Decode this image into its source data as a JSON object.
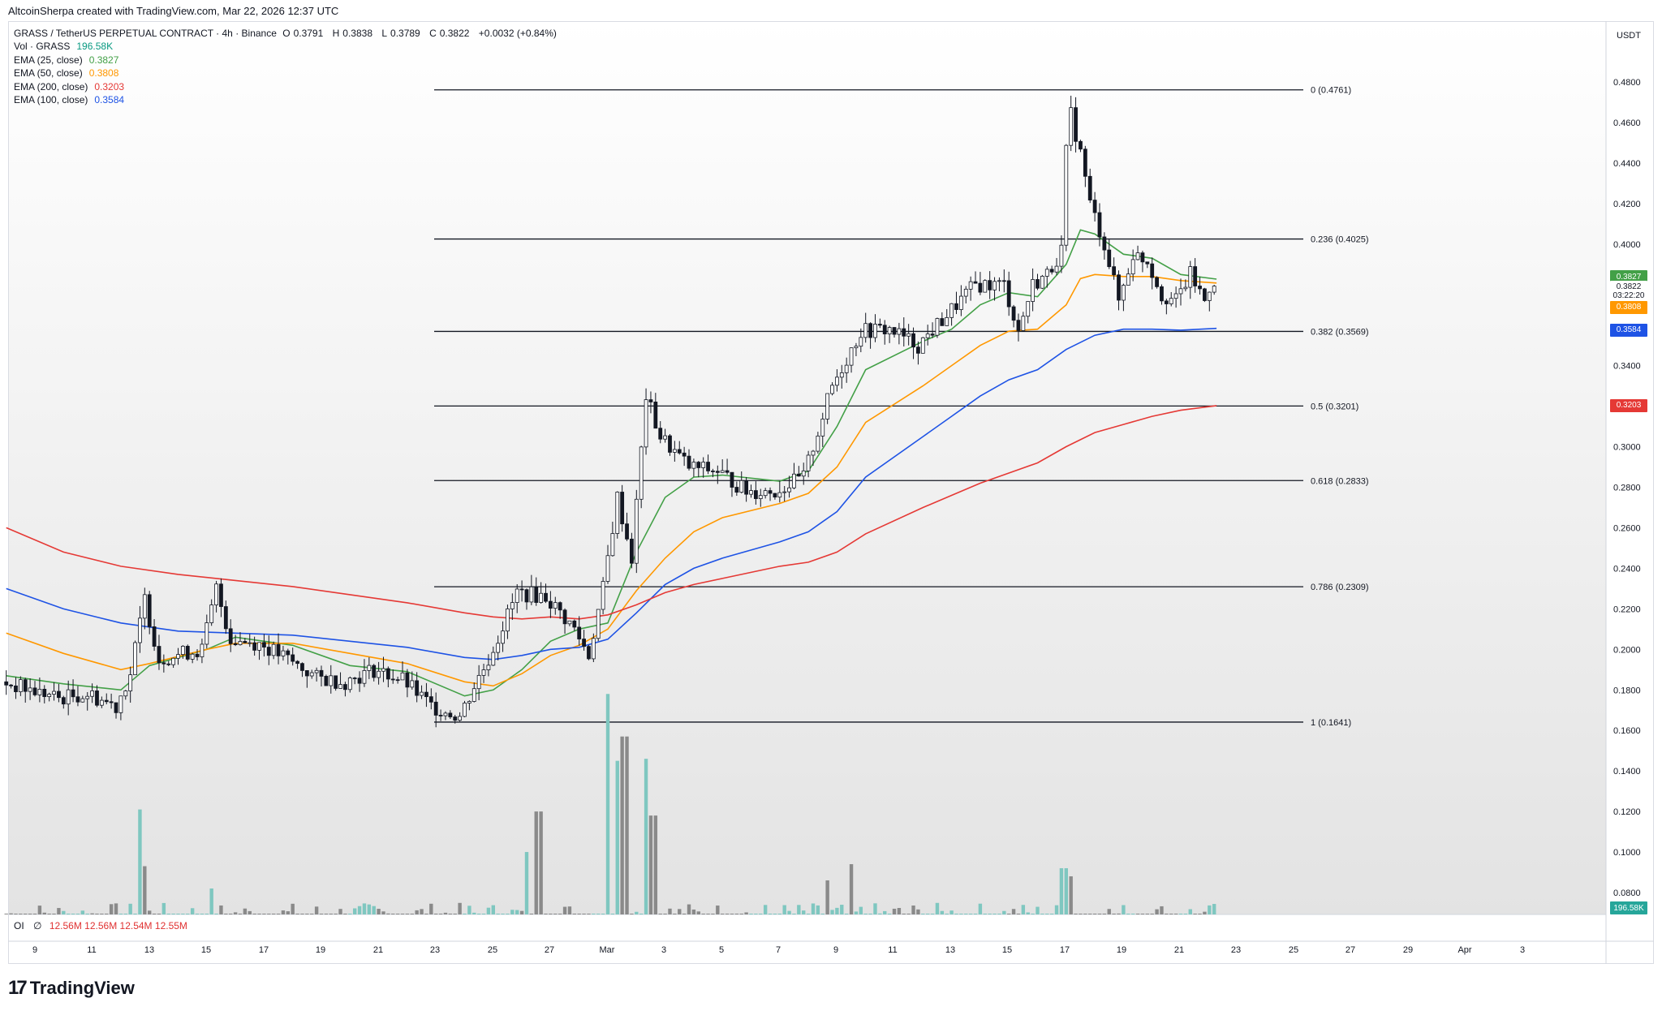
{
  "header": {
    "created_note": "AltcoinSherpa created with TradingView.com, Mar 22, 2026 12:37 UTC",
    "symbol_line": {
      "symbol": "GRASS / TetherUS PERPETUAL CONTRACT · 4h · Binance",
      "o_label": "O",
      "o": "0.3791",
      "h_label": "H",
      "h": "0.3838",
      "l_label": "L",
      "l": "0.3789",
      "c_label": "C",
      "c": "0.3822",
      "change": "+0.0032 (+0.84%)"
    },
    "indicators": [
      {
        "label": "Vol · GRASS",
        "value": "196.58K",
        "color": "#089981"
      },
      {
        "label": "EMA (25, close)",
        "value": "0.3827",
        "color": "#43a047"
      },
      {
        "label": "EMA (50, close)",
        "value": "0.3808",
        "color": "#ff9800"
      },
      {
        "label": "EMA (200, close)",
        "value": "0.3203",
        "color": "#e53935"
      },
      {
        "label": "EMA (100, close)",
        "value": "0.3584",
        "color": "#1e53e5"
      }
    ]
  },
  "price_axis": {
    "unit_button": "USDT",
    "ticks": [
      "0.4800",
      "0.4600",
      "0.4400",
      "0.4200",
      "0.4000",
      "0.3400",
      "0.3200",
      "0.3000",
      "0.2800",
      "0.2600",
      "0.2400",
      "0.2200",
      "0.2000",
      "0.1800",
      "0.1600",
      "0.1400",
      "0.1200",
      "0.1000",
      "0.0800"
    ],
    "tags": [
      {
        "name": "ema25-tag",
        "text": "0.3827",
        "color": "#43a047"
      },
      {
        "name": "last-price-tag",
        "text": "0.3822",
        "sub": "03:22:20",
        "color": "#ffffff",
        "text_color": "#131722"
      },
      {
        "name": "ema50-tag",
        "text": "0.3808",
        "color": "#ff9800"
      },
      {
        "name": "ema100-tag",
        "text": "0.3584",
        "color": "#1e53e5"
      },
      {
        "name": "ema200-tag",
        "text": "0.3203",
        "color": "#e53935"
      },
      {
        "name": "volume-tag",
        "text": "196.58K",
        "color": "#26a69a"
      }
    ]
  },
  "time_axis": {
    "ticks": [
      "9",
      "11",
      "13",
      "15",
      "17",
      "19",
      "21",
      "23",
      "25",
      "27",
      "Mar",
      "3",
      "5",
      "7",
      "9",
      "11",
      "13",
      "15",
      "17",
      "19",
      "21",
      "23",
      "25",
      "27",
      "29",
      "Apr",
      "3"
    ]
  },
  "oi_row": {
    "label": "OI",
    "symbol": "∅",
    "values": "12.56M  12.56M  12.54M  12.55M"
  },
  "brand": {
    "name": "TradingView"
  },
  "chart_data": {
    "type": "candlestick",
    "price_range": [
      0.06,
      0.49
    ],
    "fib_levels": [
      {
        "ratio": "0",
        "price": 0.4761,
        "label": "0 (0.4761)"
      },
      {
        "ratio": "0.236",
        "price": 0.4025,
        "label": "0.236 (0.4025)"
      },
      {
        "ratio": "0.382",
        "price": 0.3569,
        "label": "0.382 (0.3569)"
      },
      {
        "ratio": "0.5",
        "price": 0.3201,
        "label": "0.5 (0.3201)"
      },
      {
        "ratio": "0.618",
        "price": 0.2833,
        "label": "0.618 (0.2833)"
      },
      {
        "ratio": "0.786",
        "price": 0.2309,
        "label": "0.786 (0.2309)"
      },
      {
        "ratio": "1",
        "price": 0.1641,
        "label": "1 (0.1641)"
      }
    ],
    "price_path": [
      [
        "Feb 8",
        0.184
      ],
      [
        "Feb 9",
        0.18
      ],
      [
        "Feb 10",
        0.176
      ],
      [
        "Feb 11",
        0.178
      ],
      [
        "Feb 12",
        0.172
      ],
      [
        "Feb 12.5",
        0.188
      ],
      [
        "Feb 13",
        0.225
      ],
      [
        "Feb 13.5",
        0.195
      ],
      [
        "Feb 14",
        0.197
      ],
      [
        "Feb 15",
        0.2
      ],
      [
        "Feb 15.5",
        0.23
      ],
      [
        "Feb 16",
        0.205
      ],
      [
        "Feb 17",
        0.203
      ],
      [
        "Feb 18",
        0.195
      ],
      [
        "Feb 19",
        0.186
      ],
      [
        "Feb 20",
        0.184
      ],
      [
        "Feb 21",
        0.19
      ],
      [
        "Feb 22",
        0.185
      ],
      [
        "Feb 23",
        0.172
      ],
      [
        "Feb 24",
        0.167
      ],
      [
        "Feb 24.5",
        0.182
      ],
      [
        "Feb 25",
        0.195
      ],
      [
        "Feb 26",
        0.228
      ],
      [
        "Feb 27",
        0.226
      ],
      [
        "Feb 28",
        0.21
      ],
      [
        "Feb 28.5",
        0.197
      ],
      [
        "Mar 1",
        0.23
      ],
      [
        "Mar 1.5",
        0.275
      ],
      [
        "Mar 2",
        0.245
      ],
      [
        "Mar 2.5",
        0.325
      ],
      [
        "Mar 3",
        0.305
      ],
      [
        "Mar 4",
        0.29
      ],
      [
        "Mar 5",
        0.288
      ],
      [
        "Mar 6",
        0.278
      ],
      [
        "Mar 7",
        0.278
      ],
      [
        "Mar 8",
        0.285
      ],
      [
        "Mar 9",
        0.33
      ],
      [
        "Mar 10",
        0.357
      ],
      [
        "Mar 11",
        0.358
      ],
      [
        "Mar 12",
        0.35
      ],
      [
        "Mar 13",
        0.365
      ],
      [
        "Mar 14",
        0.38
      ],
      [
        "Mar 15",
        0.38
      ],
      [
        "Mar 15.5",
        0.357
      ],
      [
        "Mar 16",
        0.38
      ],
      [
        "Mar 16.5",
        0.385
      ],
      [
        "Mar 17",
        0.397
      ],
      [
        "Mar 17.25",
        0.469
      ],
      [
        "Mar 17.75",
        0.44
      ],
      [
        "Mar 18",
        0.42
      ],
      [
        "Mar 18.5",
        0.4
      ],
      [
        "Mar 19",
        0.372
      ],
      [
        "Mar 19.5",
        0.395
      ],
      [
        "Mar 20",
        0.392
      ],
      [
        "Mar 20.5",
        0.375
      ],
      [
        "Mar 21",
        0.372
      ],
      [
        "Mar 21.5",
        0.385
      ],
      [
        "Mar 22",
        0.372
      ],
      [
        "Mar 22.25",
        0.3822
      ]
    ],
    "ema_lines": [
      {
        "name": "EMA 25",
        "color": "#43a047",
        "points": [
          [
            "Feb 8",
            0.187
          ],
          [
            "Feb 10",
            0.183
          ],
          [
            "Feb 12",
            0.18
          ],
          [
            "Feb 13",
            0.192
          ],
          [
            "Feb 15",
            0.2
          ],
          [
            "Feb 16",
            0.206
          ],
          [
            "Feb 18",
            0.202
          ],
          [
            "Feb 20",
            0.192
          ],
          [
            "Feb 22",
            0.189
          ],
          [
            "Feb 24",
            0.177
          ],
          [
            "Feb 25",
            0.18
          ],
          [
            "Feb 26",
            0.19
          ],
          [
            "Feb 27",
            0.204
          ],
          [
            "Feb 28",
            0.21
          ],
          [
            "Mar 1",
            0.213
          ],
          [
            "Mar 2",
            0.248
          ],
          [
            "Mar 3",
            0.275
          ],
          [
            "Mar 4",
            0.285
          ],
          [
            "Mar 5",
            0.286
          ],
          [
            "Mar 7",
            0.283
          ],
          [
            "Mar 8",
            0.288
          ],
          [
            "Mar 9",
            0.31
          ],
          [
            "Mar 10",
            0.338
          ],
          [
            "Mar 12",
            0.352
          ],
          [
            "Mar 13",
            0.358
          ],
          [
            "Mar 14",
            0.37
          ],
          [
            "Mar 15",
            0.376
          ],
          [
            "Mar 16",
            0.374
          ],
          [
            "Mar 17",
            0.39
          ],
          [
            "Mar 17.5",
            0.407
          ],
          [
            "Mar 18",
            0.405
          ],
          [
            "Mar 19",
            0.395
          ],
          [
            "Mar 20",
            0.393
          ],
          [
            "Mar 21",
            0.385
          ],
          [
            "Mar 22.25",
            0.3827
          ]
        ]
      },
      {
        "name": "EMA 50",
        "color": "#ff9800",
        "points": [
          [
            "Feb 8",
            0.208
          ],
          [
            "Feb 10",
            0.198
          ],
          [
            "Feb 12",
            0.19
          ],
          [
            "Feb 13",
            0.193
          ],
          [
            "Feb 15",
            0.2
          ],
          [
            "Feb 16",
            0.203
          ],
          [
            "Feb 18",
            0.203
          ],
          [
            "Feb 20",
            0.198
          ],
          [
            "Feb 22",
            0.193
          ],
          [
            "Feb 24",
            0.184
          ],
          [
            "Feb 25",
            0.182
          ],
          [
            "Feb 26",
            0.188
          ],
          [
            "Feb 27",
            0.197
          ],
          [
            "Feb 28",
            0.202
          ],
          [
            "Mar 1",
            0.21
          ],
          [
            "Mar 2",
            0.229
          ],
          [
            "Mar 3",
            0.245
          ],
          [
            "Mar 4",
            0.258
          ],
          [
            "Mar 5",
            0.265
          ],
          [
            "Mar 7",
            0.272
          ],
          [
            "Mar 8",
            0.277
          ],
          [
            "Mar 9",
            0.29
          ],
          [
            "Mar 10",
            0.312
          ],
          [
            "Mar 12",
            0.33
          ],
          [
            "Mar 13",
            0.34
          ],
          [
            "Mar 14",
            0.35
          ],
          [
            "Mar 15",
            0.357
          ],
          [
            "Mar 16",
            0.358
          ],
          [
            "Mar 17",
            0.37
          ],
          [
            "Mar 17.5",
            0.383
          ],
          [
            "Mar 18",
            0.385
          ],
          [
            "Mar 19",
            0.384
          ],
          [
            "Mar 20",
            0.384
          ],
          [
            "Mar 21",
            0.382
          ],
          [
            "Mar 22.25",
            0.3808
          ]
        ]
      },
      {
        "name": "EMA 100",
        "color": "#1e53e5",
        "points": [
          [
            "Feb 8",
            0.23
          ],
          [
            "Feb 10",
            0.22
          ],
          [
            "Feb 12",
            0.213
          ],
          [
            "Feb 14",
            0.209
          ],
          [
            "Feb 16",
            0.208
          ],
          [
            "Feb 18",
            0.207
          ],
          [
            "Feb 20",
            0.204
          ],
          [
            "Feb 22",
            0.201
          ],
          [
            "Feb 24",
            0.196
          ],
          [
            "Feb 25",
            0.195
          ],
          [
            "Feb 26",
            0.197
          ],
          [
            "Feb 27",
            0.2
          ],
          [
            "Feb 28",
            0.201
          ],
          [
            "Mar 1",
            0.205
          ],
          [
            "Mar 2",
            0.218
          ],
          [
            "Mar 3",
            0.232
          ],
          [
            "Mar 4",
            0.24
          ],
          [
            "Mar 5",
            0.245
          ],
          [
            "Mar 6",
            0.249
          ],
          [
            "Mar 7",
            0.253
          ],
          [
            "Mar 8",
            0.258
          ],
          [
            "Mar 9",
            0.268
          ],
          [
            "Mar 10",
            0.285
          ],
          [
            "Mar 12",
            0.305
          ],
          [
            "Mar 13",
            0.315
          ],
          [
            "Mar 14",
            0.325
          ],
          [
            "Mar 15",
            0.333
          ],
          [
            "Mar 16",
            0.338
          ],
          [
            "Mar 17",
            0.348
          ],
          [
            "Mar 18",
            0.355
          ],
          [
            "Mar 19",
            0.358
          ],
          [
            "Mar 20",
            0.358
          ],
          [
            "Mar 21",
            0.3575
          ],
          [
            "Mar 22.25",
            0.3584
          ]
        ]
      },
      {
        "name": "EMA 200",
        "color": "#e53935",
        "points": [
          [
            "Feb 8",
            0.26
          ],
          [
            "Feb 10",
            0.248
          ],
          [
            "Feb 12",
            0.241
          ],
          [
            "Feb 14",
            0.237
          ],
          [
            "Feb 16",
            0.234
          ],
          [
            "Feb 18",
            0.231
          ],
          [
            "Feb 20",
            0.227
          ],
          [
            "Feb 22",
            0.223
          ],
          [
            "Feb 24",
            0.218
          ],
          [
            "Feb 25",
            0.216
          ],
          [
            "Feb 26",
            0.215
          ],
          [
            "Feb 27",
            0.216
          ],
          [
            "Feb 28",
            0.215
          ],
          [
            "Mar 1",
            0.217
          ],
          [
            "Mar 2",
            0.222
          ],
          [
            "Mar 3",
            0.228
          ],
          [
            "Mar 4",
            0.232
          ],
          [
            "Mar 5",
            0.235
          ],
          [
            "Mar 6",
            0.238
          ],
          [
            "Mar 7",
            0.241
          ],
          [
            "Mar 8",
            0.243
          ],
          [
            "Mar 9",
            0.248
          ],
          [
            "Mar 10",
            0.257
          ],
          [
            "Mar 12",
            0.27
          ],
          [
            "Mar 13",
            0.276
          ],
          [
            "Mar 14",
            0.282
          ],
          [
            "Mar 15",
            0.287
          ],
          [
            "Mar 16",
            0.292
          ],
          [
            "Mar 17",
            0.3
          ],
          [
            "Mar 18",
            0.307
          ],
          [
            "Mar 19",
            0.311
          ],
          [
            "Mar 20",
            0.315
          ],
          [
            "Mar 21",
            0.318
          ],
          [
            "Mar 22.25",
            0.3203
          ]
        ]
      }
    ],
    "volume_spikes": [
      {
        "x": "Feb 12.6",
        "height": 0.121,
        "up": true
      },
      {
        "x": "Feb 12.8",
        "height": 0.093,
        "up": false
      },
      {
        "x": "Feb 15.2",
        "height": 0.082,
        "up": true
      },
      {
        "x": "Feb 26.2",
        "height": 0.1,
        "up": true
      },
      {
        "x": "Feb 26.6",
        "height": 0.12,
        "up": false
      },
      {
        "x": "Mar 1.0",
        "height": 0.178,
        "up": true
      },
      {
        "x": "Mar 1.3",
        "height": 0.145,
        "up": true
      },
      {
        "x": "Mar 1.6",
        "height": 0.157,
        "up": false
      },
      {
        "x": "Mar 2.3",
        "height": 0.146,
        "up": true
      },
      {
        "x": "Mar 2.6",
        "height": 0.118,
        "up": false
      },
      {
        "x": "Mar 8.7",
        "height": 0.086,
        "up": false
      },
      {
        "x": "Mar 9.5",
        "height": 0.094,
        "up": false
      },
      {
        "x": "Mar 16.9",
        "height": 0.092,
        "up": true
      },
      {
        "x": "Mar 17.2",
        "height": 0.088,
        "up": false
      }
    ]
  }
}
